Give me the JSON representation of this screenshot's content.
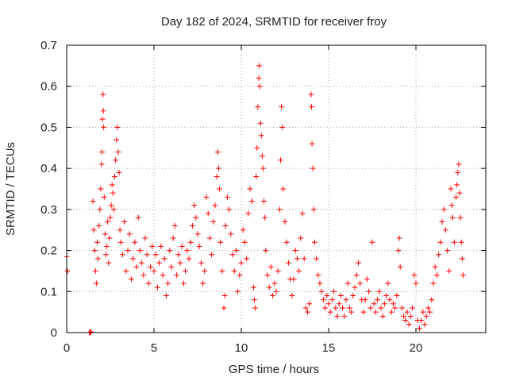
{
  "chart_data": {
    "type": "scatter",
    "title": "Day 182 of 2024, SRMTID for receiver froy",
    "xlabel": "GPS time / hours",
    "ylabel": "SRMTID / TECUs",
    "xlim": [
      0,
      24
    ],
    "ylim": [
      0,
      0.7
    ],
    "xticks": [
      0,
      5,
      10,
      15,
      20
    ],
    "yticks": [
      0,
      0.1,
      0.2,
      0.3,
      0.4,
      0.5,
      0.6,
      0.7
    ],
    "xtick_labels": [
      "0",
      "5",
      "10",
      "15",
      "20"
    ],
    "ytick_labels": [
      "0",
      "0.1",
      "0.2",
      "0.3",
      "0.4",
      "0.5",
      "0.6",
      "0.7"
    ],
    "grid": true,
    "marker": "+",
    "series": [
      {
        "name": "SRMTID",
        "color": "#ff0000",
        "points": [
          [
            0.0,
            0.185
          ],
          [
            0.05,
            0.15
          ],
          [
            1.3,
            0.0
          ],
          [
            1.35,
            0.0
          ],
          [
            1.4,
            0.002
          ],
          [
            1.5,
            0.32
          ],
          [
            1.55,
            0.25
          ],
          [
            1.6,
            0.2
          ],
          [
            1.65,
            0.15
          ],
          [
            1.7,
            0.12
          ],
          [
            1.75,
            0.22
          ],
          [
            1.8,
            0.18
          ],
          [
            1.85,
            0.26
          ],
          [
            1.9,
            0.3
          ],
          [
            1.95,
            0.35
          ],
          [
            2.0,
            0.41
          ],
          [
            2.02,
            0.44
          ],
          [
            2.05,
            0.52
          ],
          [
            2.08,
            0.58
          ],
          [
            2.1,
            0.54
          ],
          [
            2.12,
            0.5
          ],
          [
            2.15,
            0.33
          ],
          [
            2.2,
            0.24
          ],
          [
            2.25,
            0.19
          ],
          [
            2.3,
            0.21
          ],
          [
            2.35,
            0.27
          ],
          [
            2.4,
            0.17
          ],
          [
            2.45,
            0.23
          ],
          [
            2.5,
            0.28
          ],
          [
            2.55,
            0.31
          ],
          [
            2.6,
            0.36
          ],
          [
            2.65,
            0.34
          ],
          [
            2.7,
            0.3
          ],
          [
            2.75,
            0.38
          ],
          [
            2.8,
            0.42
          ],
          [
            2.85,
            0.47
          ],
          [
            2.9,
            0.5
          ],
          [
            2.95,
            0.44
          ],
          [
            3.0,
            0.39
          ],
          [
            3.05,
            0.25
          ],
          [
            3.1,
            0.22
          ],
          [
            3.2,
            0.19
          ],
          [
            3.3,
            0.27
          ],
          [
            3.4,
            0.15
          ],
          [
            3.5,
            0.2
          ],
          [
            3.6,
            0.24
          ],
          [
            3.7,
            0.13
          ],
          [
            3.8,
            0.18
          ],
          [
            3.9,
            0.22
          ],
          [
            4.0,
            0.16
          ],
          [
            4.1,
            0.28
          ],
          [
            4.2,
            0.2
          ],
          [
            4.3,
            0.17
          ],
          [
            4.4,
            0.14
          ],
          [
            4.5,
            0.23
          ],
          [
            4.6,
            0.19
          ],
          [
            4.7,
            0.12
          ],
          [
            4.8,
            0.16
          ],
          [
            4.9,
            0.21
          ],
          [
            5.0,
            0.15
          ],
          [
            5.1,
            0.19
          ],
          [
            5.2,
            0.11
          ],
          [
            5.3,
            0.17
          ],
          [
            5.4,
            0.21
          ],
          [
            5.5,
            0.14
          ],
          [
            5.6,
            0.18
          ],
          [
            5.7,
            0.09
          ],
          [
            5.8,
            0.12
          ],
          [
            5.9,
            0.2
          ],
          [
            6.0,
            0.16
          ],
          [
            6.1,
            0.23
          ],
          [
            6.2,
            0.26
          ],
          [
            6.3,
            0.14
          ],
          [
            6.4,
            0.19
          ],
          [
            6.5,
            0.17
          ],
          [
            6.6,
            0.21
          ],
          [
            6.7,
            0.12
          ],
          [
            6.8,
            0.15
          ],
          [
            6.9,
            0.2
          ],
          [
            7.0,
            0.18
          ],
          [
            7.1,
            0.22
          ],
          [
            7.2,
            0.26
          ],
          [
            7.3,
            0.31
          ],
          [
            7.4,
            0.28
          ],
          [
            7.5,
            0.24
          ],
          [
            7.6,
            0.21
          ],
          [
            7.7,
            0.17
          ],
          [
            7.8,
            0.12
          ],
          [
            7.9,
            0.15
          ],
          [
            8.0,
            0.33
          ],
          [
            8.1,
            0.29
          ],
          [
            8.2,
            0.23
          ],
          [
            8.3,
            0.19
          ],
          [
            8.4,
            0.27
          ],
          [
            8.5,
            0.31
          ],
          [
            8.6,
            0.38
          ],
          [
            8.65,
            0.44
          ],
          [
            8.7,
            0.4
          ],
          [
            8.75,
            0.35
          ],
          [
            8.8,
            0.22
          ],
          [
            8.9,
            0.15
          ],
          [
            9.0,
            0.06
          ],
          [
            9.05,
            0.09
          ],
          [
            9.1,
            0.26
          ],
          [
            9.2,
            0.33
          ],
          [
            9.3,
            0.3
          ],
          [
            9.4,
            0.24
          ],
          [
            9.5,
            0.19
          ],
          [
            9.6,
            0.15
          ],
          [
            9.7,
            0.2
          ],
          [
            9.8,
            0.1
          ],
          [
            9.9,
            0.14
          ],
          [
            10.0,
            0.17
          ],
          [
            10.1,
            0.25
          ],
          [
            10.2,
            0.22
          ],
          [
            10.3,
            0.18
          ],
          [
            10.4,
            0.29
          ],
          [
            10.5,
            0.35
          ],
          [
            10.6,
            0.32
          ],
          [
            10.7,
            0.11
          ],
          [
            10.75,
            0.08
          ],
          [
            10.8,
            0.06
          ],
          [
            10.85,
            0.38
          ],
          [
            10.9,
            0.45
          ],
          [
            10.95,
            0.55
          ],
          [
            11.0,
            0.62
          ],
          [
            11.02,
            0.65
          ],
          [
            11.05,
            0.6
          ],
          [
            11.1,
            0.51
          ],
          [
            11.15,
            0.48
          ],
          [
            11.2,
            0.43
          ],
          [
            11.25,
            0.4
          ],
          [
            11.3,
            0.32
          ],
          [
            11.35,
            0.28
          ],
          [
            11.4,
            0.2
          ],
          [
            11.5,
            0.14
          ],
          [
            11.6,
            0.11
          ],
          [
            11.7,
            0.16
          ],
          [
            11.8,
            0.09
          ],
          [
            11.9,
            0.12
          ],
          [
            12.0,
            0.1
          ],
          [
            12.1,
            0.15
          ],
          [
            12.2,
            0.3
          ],
          [
            12.25,
            0.42
          ],
          [
            12.3,
            0.55
          ],
          [
            12.35,
            0.5
          ],
          [
            12.4,
            0.35
          ],
          [
            12.5,
            0.27
          ],
          [
            12.6,
            0.22
          ],
          [
            12.7,
            0.17
          ],
          [
            12.8,
            0.13
          ],
          [
            12.9,
            0.09
          ],
          [
            13.0,
            0.13
          ],
          [
            13.1,
            0.2
          ],
          [
            13.2,
            0.18
          ],
          [
            13.3,
            0.15
          ],
          [
            13.4,
            0.23
          ],
          [
            13.5,
            0.29
          ],
          [
            13.6,
            0.18
          ],
          [
            13.7,
            0.06
          ],
          [
            13.8,
            0.05
          ],
          [
            13.9,
            0.07
          ],
          [
            14.0,
            0.58
          ],
          [
            14.02,
            0.55
          ],
          [
            14.05,
            0.46
          ],
          [
            14.1,
            0.4
          ],
          [
            14.15,
            0.3
          ],
          [
            14.2,
            0.22
          ],
          [
            14.3,
            0.18
          ],
          [
            14.4,
            0.14
          ],
          [
            14.5,
            0.12
          ],
          [
            14.6,
            0.1
          ],
          [
            14.7,
            0.08
          ],
          [
            14.8,
            0.06
          ],
          [
            14.9,
            0.09
          ],
          [
            15.0,
            0.07
          ],
          [
            15.1,
            0.05
          ],
          [
            15.2,
            0.08
          ],
          [
            15.3,
            0.1
          ],
          [
            15.4,
            0.06
          ],
          [
            15.5,
            0.04
          ],
          [
            15.6,
            0.07
          ],
          [
            15.7,
            0.09
          ],
          [
            15.8,
            0.06
          ],
          [
            15.9,
            0.04
          ],
          [
            16.0,
            0.08
          ],
          [
            16.1,
            0.12
          ],
          [
            16.2,
            0.06
          ],
          [
            16.3,
            0.05
          ],
          [
            16.4,
            0.09
          ],
          [
            16.5,
            0.11
          ],
          [
            16.6,
            0.14
          ],
          [
            16.7,
            0.17
          ],
          [
            16.8,
            0.12
          ],
          [
            16.9,
            0.08
          ],
          [
            17.0,
            0.05
          ],
          [
            17.1,
            0.08
          ],
          [
            17.2,
            0.13
          ],
          [
            17.3,
            0.1
          ],
          [
            17.4,
            0.06
          ],
          [
            17.5,
            0.22
          ],
          [
            17.6,
            0.07
          ],
          [
            17.7,
            0.05
          ],
          [
            17.8,
            0.08
          ],
          [
            17.9,
            0.1
          ],
          [
            18.0,
            0.06
          ],
          [
            18.1,
            0.04
          ],
          [
            18.2,
            0.07
          ],
          [
            18.3,
            0.09
          ],
          [
            18.4,
            0.12
          ],
          [
            18.5,
            0.08
          ],
          [
            18.6,
            0.05
          ],
          [
            18.7,
            0.07
          ],
          [
            18.8,
            0.06
          ],
          [
            18.9,
            0.09
          ],
          [
            19.0,
            0.2
          ],
          [
            19.05,
            0.23
          ],
          [
            19.1,
            0.16
          ],
          [
            19.2,
            0.06
          ],
          [
            19.3,
            0.04
          ],
          [
            19.4,
            0.03
          ],
          [
            19.5,
            0.05
          ],
          [
            19.6,
            0.02
          ],
          [
            19.7,
            0.04
          ],
          [
            19.8,
            0.06
          ],
          [
            19.9,
            0.14
          ],
          [
            20.0,
            0.12
          ],
          [
            20.1,
            0.03
          ],
          [
            20.2,
            0.01
          ],
          [
            20.3,
            0.03
          ],
          [
            20.4,
            0.05
          ],
          [
            20.5,
            0.02
          ],
          [
            20.6,
            0.04
          ],
          [
            20.7,
            0.06
          ],
          [
            20.8,
            0.05
          ],
          [
            20.9,
            0.08
          ],
          [
            21.0,
            0.12
          ],
          [
            21.1,
            0.16
          ],
          [
            21.2,
            0.14
          ],
          [
            21.3,
            0.19
          ],
          [
            21.4,
            0.22
          ],
          [
            21.5,
            0.27
          ],
          [
            21.6,
            0.3
          ],
          [
            21.7,
            0.25
          ],
          [
            21.8,
            0.2
          ],
          [
            21.9,
            0.15
          ],
          [
            22.0,
            0.35
          ],
          [
            22.05,
            0.31
          ],
          [
            22.1,
            0.28
          ],
          [
            22.2,
            0.22
          ],
          [
            22.3,
            0.33
          ],
          [
            22.35,
            0.36
          ],
          [
            22.4,
            0.39
          ],
          [
            22.45,
            0.41
          ],
          [
            22.5,
            0.34
          ],
          [
            22.55,
            0.28
          ],
          [
            22.6,
            0.22
          ],
          [
            22.65,
            0.18
          ],
          [
            22.7,
            0.14
          ]
        ]
      }
    ]
  }
}
